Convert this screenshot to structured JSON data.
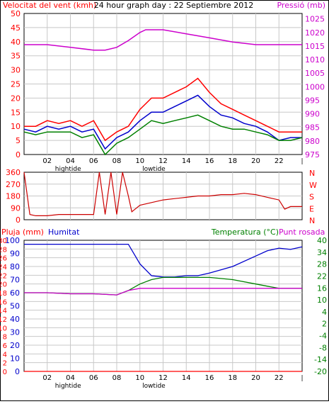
{
  "chart_data": [
    {
      "type": "line",
      "title": "24 hour graph day : 22 Septiembre 2012",
      "left_axis_label": "Velocitat del vent (kmh)",
      "right_axis_label": "Pressió (mb)",
      "left_ticks": [
        "0",
        "5",
        "10",
        "15",
        "20",
        "25",
        "30",
        "35",
        "40",
        "45",
        "50"
      ],
      "right_ticks": [
        "975",
        "980",
        "985",
        "990",
        "995",
        "1000",
        "1005",
        "1010",
        "1015",
        "1020",
        "1025"
      ],
      "ylim_left": [
        0,
        50
      ],
      "ylim_right": [
        975,
        1027
      ],
      "x_ticks": [
        "02",
        "04",
        "06",
        "08",
        "10",
        "12",
        "14",
        "16",
        "18",
        "20",
        "22"
      ],
      "x_annotations": [
        {
          "x": 3.8,
          "text": "hightide"
        },
        {
          "x": 11.2,
          "text": "lowtide"
        }
      ],
      "grid": true,
      "colors": {
        "left_axis": "#ff0000",
        "right_axis": "#cc00cc",
        "title": "#000000"
      },
      "series": [
        {
          "color": "#cc00cc",
          "axis": "right",
          "x": [
            0,
            2,
            4,
            6,
            7,
            8,
            9,
            10,
            10.5,
            12,
            14,
            16,
            18,
            20,
            22,
            24
          ],
          "values": [
            1015.5,
            1015.5,
            1014.5,
            1013.5,
            1013.5,
            1014.5,
            1017,
            1020,
            1021,
            1021,
            1019.5,
            1018,
            1016.5,
            1015.5,
            1015.5,
            1015.5
          ]
        },
        {
          "color": "#ff0000",
          "axis": "left",
          "x": [
            0,
            1,
            2,
            3,
            4,
            5,
            6,
            7,
            8,
            9,
            10,
            11,
            12,
            13,
            14,
            15,
            16,
            17,
            18,
            19,
            20,
            21,
            22,
            23,
            24
          ],
          "values": [
            10,
            10,
            12,
            11,
            12,
            10,
            12,
            5,
            8,
            10,
            16,
            20,
            20,
            22,
            24,
            27,
            22,
            18,
            16,
            14,
            12,
            10,
            8,
            8,
            8
          ]
        },
        {
          "color": "#0000cc",
          "axis": "left",
          "x": [
            0,
            1,
            2,
            3,
            4,
            5,
            6,
            7,
            8,
            9,
            10,
            11,
            12,
            13,
            14,
            15,
            16,
            17,
            18,
            19,
            20,
            21,
            22,
            23,
            24
          ],
          "values": [
            9,
            8,
            10,
            9,
            10,
            8,
            9,
            2,
            6,
            8,
            12,
            15,
            15,
            17,
            19,
            21,
            17,
            14,
            13,
            11,
            10,
            8,
            5,
            6,
            6
          ]
        },
        {
          "color": "#008000",
          "axis": "left",
          "x": [
            0,
            1,
            2,
            3,
            4,
            5,
            6,
            7,
            8,
            9,
            10,
            11,
            12,
            13,
            14,
            15,
            16,
            17,
            18,
            19,
            20,
            21,
            22,
            23,
            24
          ],
          "values": [
            8,
            7,
            8,
            8,
            8,
            6,
            7,
            0,
            4,
            6,
            9,
            12,
            11,
            12,
            13,
            14,
            12,
            10,
            9,
            9,
            8,
            7,
            5,
            5,
            6
          ]
        }
      ]
    },
    {
      "type": "line",
      "right_axis_label": [
        "N",
        "W",
        "S",
        "E",
        "N"
      ],
      "left_ticks": [
        "0",
        "90",
        "180",
        "270",
        "360"
      ],
      "ylim": [
        0,
        360
      ],
      "x_ticks": [],
      "grid": true,
      "colors": {
        "axis": "#ff0000",
        "right_axis": "#ff0000"
      },
      "series": [
        {
          "color": "#cc0000",
          "x": [
            0,
            0.5,
            1,
            2,
            3,
            4,
            5,
            6,
            6.5,
            7,
            7.5,
            8,
            8.5,
            9,
            9.3,
            10,
            11,
            12,
            13,
            14,
            15,
            16,
            17,
            18,
            19,
            20,
            21,
            22,
            22.5,
            23,
            24
          ],
          "values": [
            360,
            40,
            30,
            30,
            40,
            40,
            40,
            40,
            360,
            40,
            360,
            40,
            360,
            180,
            60,
            110,
            130,
            150,
            160,
            170,
            180,
            180,
            190,
            190,
            200,
            190,
            170,
            150,
            80,
            100,
            100
          ]
        }
      ]
    },
    {
      "type": "line",
      "left_axis_label": "Pluja (mm)",
      "left_axis_label2": "Humitat",
      "right_axis_label": "Temperatura (°C)",
      "right_axis_label2": "Punt rosada",
      "left_ticks_rain": [
        "0",
        "2",
        "4",
        "6",
        "8",
        "10",
        "12",
        "14",
        "16",
        "18",
        "20",
        "22",
        "24",
        "26",
        "28",
        "30"
      ],
      "left_ticks_humidity": [
        "0",
        "10",
        "20",
        "30",
        "40",
        "50",
        "60",
        "70",
        "80",
        "90",
        "100"
      ],
      "right_ticks": [
        "-20",
        "-14",
        "-8",
        "-4",
        "2",
        "4",
        "10",
        "16",
        "22",
        "28",
        "34",
        "40"
      ],
      "ylim_humidity": [
        0,
        100
      ],
      "ylim_temp": [
        -20,
        40
      ],
      "x_ticks": [
        "02",
        "04",
        "06",
        "08",
        "10",
        "12",
        "14",
        "16",
        "18",
        "20",
        "22"
      ],
      "x_annotations": [
        {
          "x": 3.8,
          "text": "hightide"
        },
        {
          "x": 11.2,
          "text": "lowtide"
        }
      ],
      "grid": true,
      "colors": {
        "rain": "#ff0000",
        "humidity": "#0000cc",
        "temp": "#008000",
        "dew": "#cc00cc"
      },
      "series": [
        {
          "color": "#0000cc",
          "axis": "humidity",
          "x": [
            0,
            2,
            4,
            6,
            8,
            9,
            10,
            11,
            12,
            13,
            14,
            15,
            16,
            18,
            20,
            21,
            22,
            23,
            24
          ],
          "values": [
            97,
            97,
            97,
            97,
            97,
            97,
            82,
            73,
            72,
            72,
            73,
            73,
            75,
            80,
            88,
            92,
            94,
            93,
            95
          ]
        },
        {
          "color": "#008000",
          "axis": "temp",
          "x": [
            0,
            2,
            4,
            6,
            8,
            9,
            10,
            11,
            12,
            13,
            14,
            15,
            16,
            18,
            20,
            21,
            22,
            23,
            24
          ],
          "values": [
            16,
            16,
            15.5,
            15.5,
            15,
            17,
            20,
            22,
            23,
            23,
            23,
            23,
            23,
            22,
            20,
            19,
            18,
            18,
            18
          ]
        },
        {
          "color": "#cc00cc",
          "axis": "temp",
          "x": [
            0,
            2,
            4,
            6,
            8,
            9,
            10,
            11,
            12,
            13,
            14,
            15,
            16,
            18,
            20,
            21,
            22,
            23,
            24
          ],
          "values": [
            16,
            16,
            15.5,
            15.5,
            15,
            17,
            18,
            18,
            18,
            18,
            18,
            18,
            18,
            18,
            18,
            18,
            18,
            18,
            18
          ]
        },
        {
          "color": "#ff0000",
          "axis": "rain",
          "x": [
            0,
            24
          ],
          "values": [
            0,
            0
          ]
        }
      ]
    }
  ]
}
